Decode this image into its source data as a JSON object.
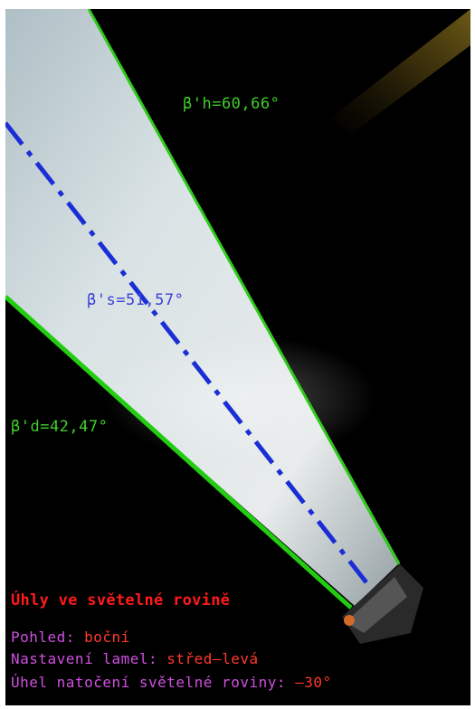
{
  "labels": {
    "beta_h": "β'h=60,66°",
    "beta_s": "β's=51,57°",
    "beta_d": "β'd=42,47°"
  },
  "info": {
    "title": "Úhly ve světelné rovině",
    "view_key": "Pohled:",
    "view_value": "boční",
    "slats_key": "Nastavení lamel:",
    "slats_value": "střed–levá",
    "plane_key": "Úhel natočení světelné roviny:",
    "plane_value": "–30°"
  },
  "colors": {
    "upper_line": "#2ecc1a",
    "lower_line": "#22cc11",
    "axis_line": "#1a2ed6",
    "label_green": "#3fcf2a",
    "label_blue": "#3a40d8",
    "title_red": "#ff1a1a",
    "key_purple": "#d050e0",
    "value_red": "#ff3a2a",
    "background": "#000000",
    "border": "#ffffff"
  }
}
